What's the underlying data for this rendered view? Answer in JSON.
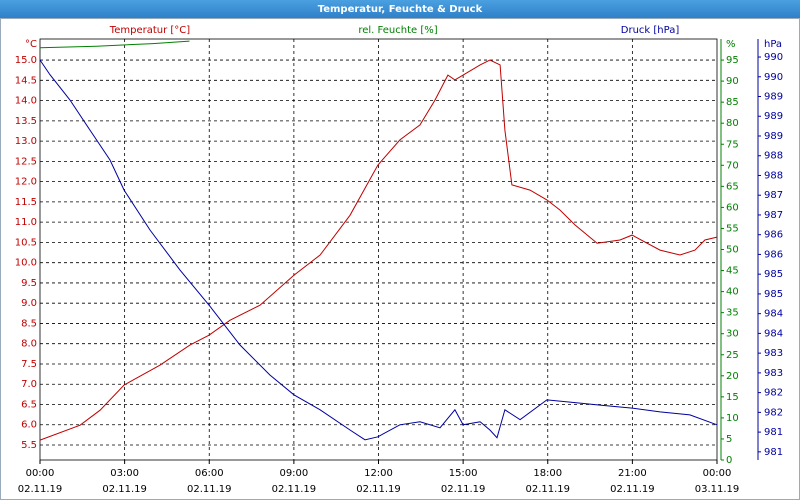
{
  "chart_data": {
    "type": "line",
    "title": "Temperatur, Feuchte & Druck",
    "y_title": "Temperatur [°C]",
    "y_unit": "°C",
    "y_color": "#c00000",
    "y2_title": "rel. Feuchte [%]",
    "y2_unit": "%",
    "y2_color": "#008000",
    "y3_title": "Druck [hPa]",
    "y3_unit": "hPa",
    "y3_color": "#0000a0",
    "xlim": [
      0,
      24
    ],
    "xticks": [
      {
        "value": 0,
        "label": "00:00"
      },
      {
        "value": 3,
        "label": "03:00"
      },
      {
        "value": 6,
        "label": "06:00"
      },
      {
        "value": 9,
        "label": "09:00"
      },
      {
        "value": 12,
        "label": "12:00"
      },
      {
        "value": 15,
        "label": "15:00"
      },
      {
        "value": 18,
        "label": "18:00"
      },
      {
        "value": 21,
        "label": "21:00"
      },
      {
        "value": 24,
        "label": "00:00"
      }
    ],
    "xtick_dates": [
      "02.11.19",
      "02.11.19",
      "02.11.19",
      "02.11.19",
      "02.11.19",
      "02.11.19",
      "02.11.19",
      "02.11.19",
      "03.11.19"
    ],
    "ylim": [
      5.13,
      15.52
    ],
    "yticks": [
      {
        "value": 5.5,
        "label": "5.5"
      },
      {
        "value": 6,
        "label": "6.0"
      },
      {
        "value": 6.5,
        "label": "6.5"
      },
      {
        "value": 7,
        "label": "7.0"
      },
      {
        "value": 7.5,
        "label": "7.5"
      },
      {
        "value": 8,
        "label": "8.0"
      },
      {
        "value": 8.5,
        "label": "8.5"
      },
      {
        "value": 9,
        "label": "9.0"
      },
      {
        "value": 9.5,
        "label": "9.5"
      },
      {
        "value": 10,
        "label": "10.0"
      },
      {
        "value": 10.5,
        "label": "10.5"
      },
      {
        "value": 11,
        "label": "11.0"
      },
      {
        "value": 11.5,
        "label": "11.5"
      },
      {
        "value": 12,
        "label": "12.0"
      },
      {
        "value": 12.5,
        "label": "12.5"
      },
      {
        "value": 13,
        "label": "13.0"
      },
      {
        "value": 13.5,
        "label": "13.5"
      },
      {
        "value": 14,
        "label": "14.0"
      },
      {
        "value": 14.5,
        "label": "14.5"
      },
      {
        "value": 15,
        "label": "15.0"
      }
    ],
    "y2lim": [
      0,
      100
    ],
    "y2ticks": [
      0,
      5,
      10,
      15,
      20,
      25,
      30,
      35,
      40,
      45,
      50,
      55,
      60,
      65,
      70,
      75,
      80,
      85,
      90,
      95
    ],
    "y3lim": [
      980.81,
      990.62
    ],
    "y3ticks": [
      {
        "value": 981.0,
        "label": "981"
      },
      {
        "value": 981.46,
        "label": "981"
      },
      {
        "value": 981.92,
        "label": "982"
      },
      {
        "value": 982.38,
        "label": "982"
      },
      {
        "value": 982.84,
        "label": "983"
      },
      {
        "value": 983.3,
        "label": "983"
      },
      {
        "value": 983.76,
        "label": "984"
      },
      {
        "value": 984.22,
        "label": "984"
      },
      {
        "value": 984.68,
        "label": "985"
      },
      {
        "value": 985.14,
        "label": "985"
      },
      {
        "value": 985.6,
        "label": "986"
      },
      {
        "value": 986.06,
        "label": "986"
      },
      {
        "value": 986.52,
        "label": "987"
      },
      {
        "value": 986.98,
        "label": "987"
      },
      {
        "value": 987.44,
        "label": "988"
      },
      {
        "value": 987.9,
        "label": "988"
      },
      {
        "value": 988.36,
        "label": "989"
      },
      {
        "value": 988.82,
        "label": "989"
      },
      {
        "value": 989.28,
        "label": "989"
      },
      {
        "value": 989.74,
        "label": "990"
      },
      {
        "value": 990.2,
        "label": "990"
      }
    ],
    "grid": true,
    "series": [
      {
        "name": "Temperatur",
        "color": "#c00000",
        "axis": "y",
        "x": [
          0,
          1.42,
          2.13,
          2.98,
          4.25,
          5.32,
          5.99,
          6.74,
          7.8,
          9.0,
          9.93,
          10.99,
          11.98,
          12.76,
          13.47,
          14.0,
          14.46,
          14.71,
          15.0,
          15.6,
          15.95,
          16.31,
          16.48,
          16.73,
          17.37,
          17.97,
          18.43,
          18.97,
          19.75,
          20.56,
          20.99,
          21.98,
          22.69,
          23.22,
          23.57,
          24.0
        ],
        "values": [
          5.62,
          5.99,
          6.36,
          6.98,
          7.47,
          7.97,
          8.21,
          8.58,
          8.95,
          9.69,
          10.19,
          11.17,
          12.41,
          13.03,
          13.4,
          14.01,
          14.63,
          14.51,
          14.63,
          14.88,
          15.0,
          14.88,
          13.27,
          11.92,
          11.79,
          11.55,
          11.3,
          10.93,
          10.48,
          10.56,
          10.68,
          10.31,
          10.19,
          10.31,
          10.56,
          10.63
        ]
      },
      {
        "name": "rel. Feuchte",
        "color": "#008000",
        "axis": "y2",
        "x": [
          0,
          2,
          4,
          5.3
        ],
        "values": [
          97.9,
          98.3,
          98.9,
          99.5
        ]
      },
      {
        "name": "Druck",
        "color": "#0000a0",
        "axis": "y3",
        "x": [
          0,
          0.35,
          1.06,
          1.77,
          2.48,
          2.98,
          3.9,
          4.96,
          5.99,
          7.09,
          8.15,
          9.0,
          9.93,
          10.99,
          11.52,
          11.98,
          12.76,
          13.47,
          14.18,
          14.71,
          15.0,
          15.6,
          15.95,
          16.2,
          16.48,
          17.02,
          17.97,
          18.79,
          19.85,
          20.99,
          21.98,
          23.04,
          24.0
        ],
        "values": [
          990.13,
          989.79,
          989.2,
          988.5,
          987.8,
          987.1,
          986.17,
          985.24,
          984.42,
          983.49,
          982.79,
          982.33,
          981.98,
          981.51,
          981.28,
          981.35,
          981.63,
          981.7,
          981.56,
          981.98,
          981.63,
          981.7,
          981.51,
          981.33,
          981.98,
          981.75,
          982.21,
          982.16,
          982.09,
          982.02,
          981.93,
          981.86,
          981.63
        ]
      }
    ]
  }
}
